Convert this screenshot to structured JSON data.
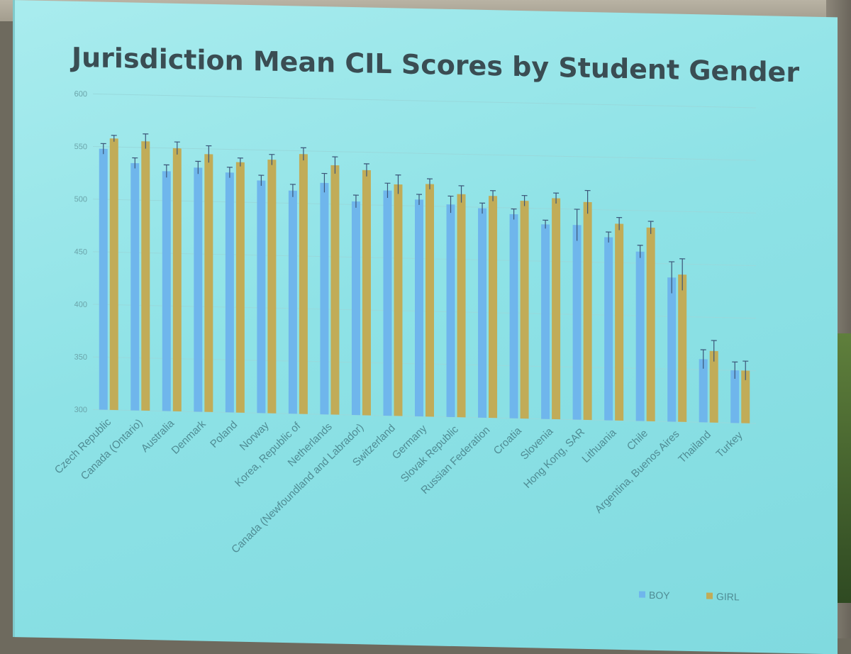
{
  "slide": {
    "title": "Jurisdiction Mean CIL Scores by Student Gender"
  },
  "colors": {
    "boy": "#6fb6ec",
    "girl": "#c1ac58",
    "error_bar": "#3b5578"
  },
  "chart_data": {
    "type": "bar",
    "title": "Jurisdiction Mean CIL Scores by Student Gender",
    "xlabel": "",
    "ylabel": "",
    "ylim": [
      300,
      600
    ],
    "yticks": [
      300,
      350,
      400,
      450,
      500,
      550,
      600
    ],
    "grid": true,
    "legend_position": "bottom-right",
    "categories": [
      "Czech Republic",
      "Canada (Ontario)",
      "Australia",
      "Denmark",
      "Poland",
      "Norway",
      "Korea, Republic of",
      "Netherlands",
      "Canada (Newfoundland and Labrador)",
      "Switzerland",
      "Germany",
      "Slovak Republic",
      "Russian Federation",
      "Croatia",
      "Slovenia",
      "Hong Kong, SAR",
      "Lithuania",
      "Chile",
      "Argentina, Buenos Aires",
      "Thailand",
      "Turkey"
    ],
    "series": [
      {
        "name": "BOY",
        "values": [
          548,
          535,
          528,
          532,
          528,
          521,
          512,
          520,
          503,
          514,
          506,
          502,
          499,
          494,
          485,
          485,
          474,
          461,
          437,
          360,
          350
        ],
        "errors": [
          5,
          5,
          6,
          6,
          5,
          5,
          6,
          9,
          6,
          7,
          5,
          8,
          5,
          5,
          4,
          15,
          5,
          6,
          15,
          9,
          8
        ]
      },
      {
        "name": "GIRL",
        "values": [
          558,
          556,
          550,
          545,
          538,
          541,
          547,
          537,
          533,
          520,
          521,
          512,
          511,
          507,
          510,
          507,
          487,
          484,
          440,
          368,
          350
        ],
        "errors": [
          3,
          7,
          6,
          8,
          4,
          5,
          6,
          8,
          6,
          9,
          5,
          8,
          5,
          5,
          5,
          11,
          6,
          6,
          15,
          10,
          9
        ]
      }
    ]
  }
}
